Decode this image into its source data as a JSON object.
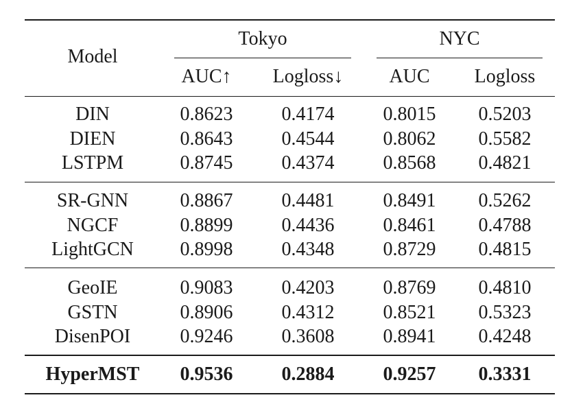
{
  "table": {
    "headers": {
      "model": "Model",
      "groups": [
        "Tokyo",
        "NYC"
      ],
      "columns": [
        "AUC↑",
        "Logloss↓",
        "AUC",
        "Logloss"
      ]
    },
    "groups": [
      {
        "rows": [
          {
            "model": "DIN",
            "values": [
              "0.8623",
              "0.4174",
              "0.8015",
              "0.5203"
            ]
          },
          {
            "model": "DIEN",
            "values": [
              "0.8643",
              "0.4544",
              "0.8062",
              "0.5582"
            ]
          },
          {
            "model": "LSTPM",
            "values": [
              "0.8745",
              "0.4374",
              "0.8568",
              "0.4821"
            ]
          }
        ]
      },
      {
        "rows": [
          {
            "model": "SR-GNN",
            "values": [
              "0.8867",
              "0.4481",
              "0.8491",
              "0.5262"
            ]
          },
          {
            "model": "NGCF",
            "values": [
              "0.8899",
              "0.4436",
              "0.8461",
              "0.4788"
            ]
          },
          {
            "model": "LightGCN",
            "values": [
              "0.8998",
              "0.4348",
              "0.8729",
              "0.4815"
            ]
          }
        ]
      },
      {
        "rows": [
          {
            "model": "GeoIE",
            "values": [
              "0.9083",
              "0.4203",
              "0.8769",
              "0.4810"
            ]
          },
          {
            "model": "GSTN",
            "values": [
              "0.8906",
              "0.4312",
              "0.8521",
              "0.5323"
            ]
          },
          {
            "model": "DisenPOI",
            "values": [
              "0.9246",
              "0.3608",
              "0.8941",
              "0.4248"
            ]
          }
        ]
      },
      {
        "rows": [
          {
            "model": "HyperMST",
            "values": [
              "0.9536",
              "0.2884",
              "0.9257",
              "0.3331"
            ],
            "bold": true
          }
        ]
      }
    ]
  }
}
